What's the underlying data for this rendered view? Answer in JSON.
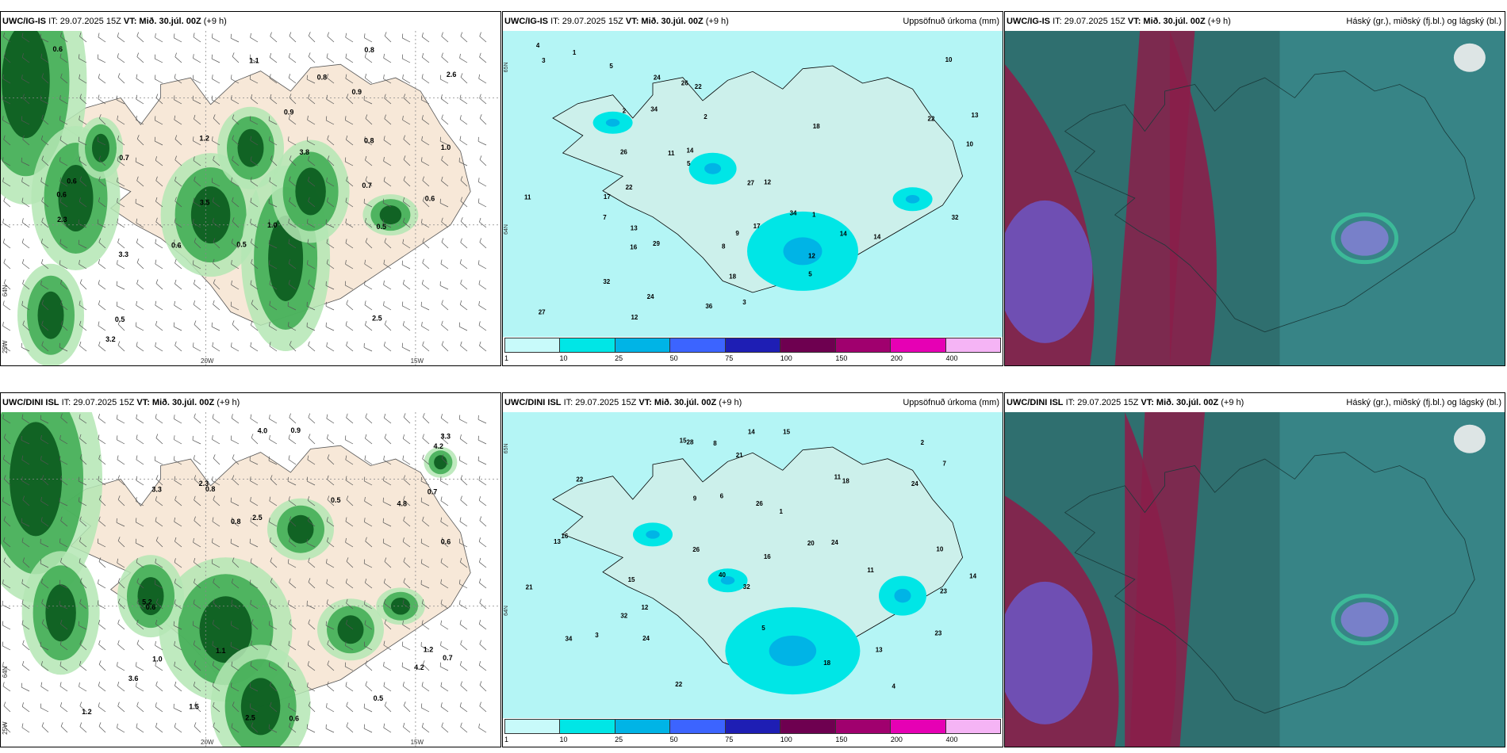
{
  "panels": [
    {
      "model": "UWC/IG-IS",
      "it": "IT: 29.07.2025 15Z",
      "vt_label": "VT:",
      "vt": "Mið. 30.júl. 00Z",
      "offset": "(+9 h)",
      "right": ""
    },
    {
      "model": "UWC/IG-IS",
      "it": "IT: 29.07.2025 15Z",
      "vt_label": "VT:",
      "vt": "Mið. 30.júl. 00Z",
      "offset": "(+9 h)",
      "right": "Uppsöfnuð úrkoma (mm)"
    },
    {
      "model": "UWC/IG-IS",
      "it": "IT: 29.07.2025 15Z",
      "vt_label": "VT:",
      "vt": "Mið. 30.júl. 00Z",
      "offset": "(+9 h)",
      "right": "Háský (gr.), miðský (fj.bl.) og lágský (bl.)"
    },
    {
      "model": "UWC/DINI ISL",
      "it": "IT: 29.07.2025 15Z",
      "vt_label": "VT:",
      "vt": "Mið. 30.júl. 00Z",
      "offset": "(+9 h)",
      "right": ""
    },
    {
      "model": "UWC/DINI ISL",
      "it": "IT: 29.07.2025 15Z",
      "vt_label": "VT:",
      "vt": "Mið. 30.júl. 00Z",
      "offset": "(+9 h)",
      "right": "Uppsöfnuð úrkoma (mm)"
    },
    {
      "model": "UWC/DINI ISL",
      "it": "IT: 29.07.2025 15Z",
      "vt_label": "VT:",
      "vt": "Mið. 30.júl. 00Z",
      "offset": "(+9 h)",
      "right": "Háský (gr.), miðský (fj.bl.) og lágský (bl.)"
    }
  ],
  "precip_scale": {
    "labels": [
      "1",
      "10",
      "25",
      "50",
      "75",
      "100",
      "150",
      "200",
      "400"
    ],
    "colors": [
      "#c8fafa",
      "#00e6e6",
      "#00b4e6",
      "#3c64ff",
      "#1e1eb4",
      "#6e0050",
      "#a0006e",
      "#e600b4",
      "#f5b4f5"
    ]
  },
  "axis_labels": {
    "lon_20w": "20W",
    "lon_15w": "15W",
    "lat_65n": "65N",
    "lat_64n": "64N",
    "lon_25w": "25W"
  },
  "colors": {
    "land": "#f7e8d8",
    "sea_precip": "#b4f5f5",
    "green_dark": "#0a5a1e",
    "green_mid": "#3caa50",
    "green_light": "#b4e6b4",
    "cloud_teal": "#2a6a6a",
    "cloud_red": "#8a1f4a",
    "cloud_blue": "#6a5acd"
  },
  "precip_values_top": [
    "3",
    "4",
    "11",
    "10",
    "13",
    "12",
    "22",
    "29",
    "27",
    "14",
    "16",
    "12",
    "12",
    "7",
    "9",
    "11",
    "8",
    "32",
    "34",
    "14",
    "10",
    "18",
    "24",
    "22",
    "17",
    "17",
    "13",
    "14",
    "36",
    "26",
    "34",
    "24",
    "22",
    "32",
    "27",
    "26",
    "5",
    "5",
    "5",
    "18",
    "2",
    "3",
    "1",
    "2",
    "1"
  ],
  "precip_values_bottom": [
    "10",
    "5",
    "4",
    "15",
    "18",
    "21",
    "21",
    "24",
    "13",
    "16",
    "23",
    "16",
    "14",
    "11",
    "18",
    "15",
    "15",
    "14",
    "13",
    "32",
    "24",
    "22",
    "20",
    "24",
    "26",
    "23",
    "22",
    "26",
    "40",
    "28",
    "34",
    "32",
    "7",
    "6",
    "8",
    "3",
    "2",
    "1",
    "9",
    "11",
    "12"
  ],
  "rain_values_top": [
    "2.3",
    "0.7",
    "0.9",
    "0.6",
    "0.5",
    "0.7",
    "0.8",
    "0.6",
    "3.3",
    "1.0",
    "0.8",
    "0.6",
    "2.5",
    "3.5",
    "3.2",
    "3.8",
    "1.0",
    "0.5",
    "0.8",
    "0.5",
    "0.6",
    "0.9",
    "1.1",
    "0.6",
    "1.2",
    "2.6"
  ],
  "rain_values_bottom": [
    "3.3",
    "2.3",
    "4.8",
    "0.7",
    "1.0",
    "1.2",
    "0.6",
    "0.9",
    "1.2",
    "3.3",
    "0.5",
    "0.6",
    "5.2",
    "4.2",
    "2.5",
    "3.6",
    "4.0",
    "4.2",
    "2.5",
    "0.7",
    "0.6",
    "0.8",
    "1.1",
    "0.5",
    "0.8",
    "1.5"
  ]
}
